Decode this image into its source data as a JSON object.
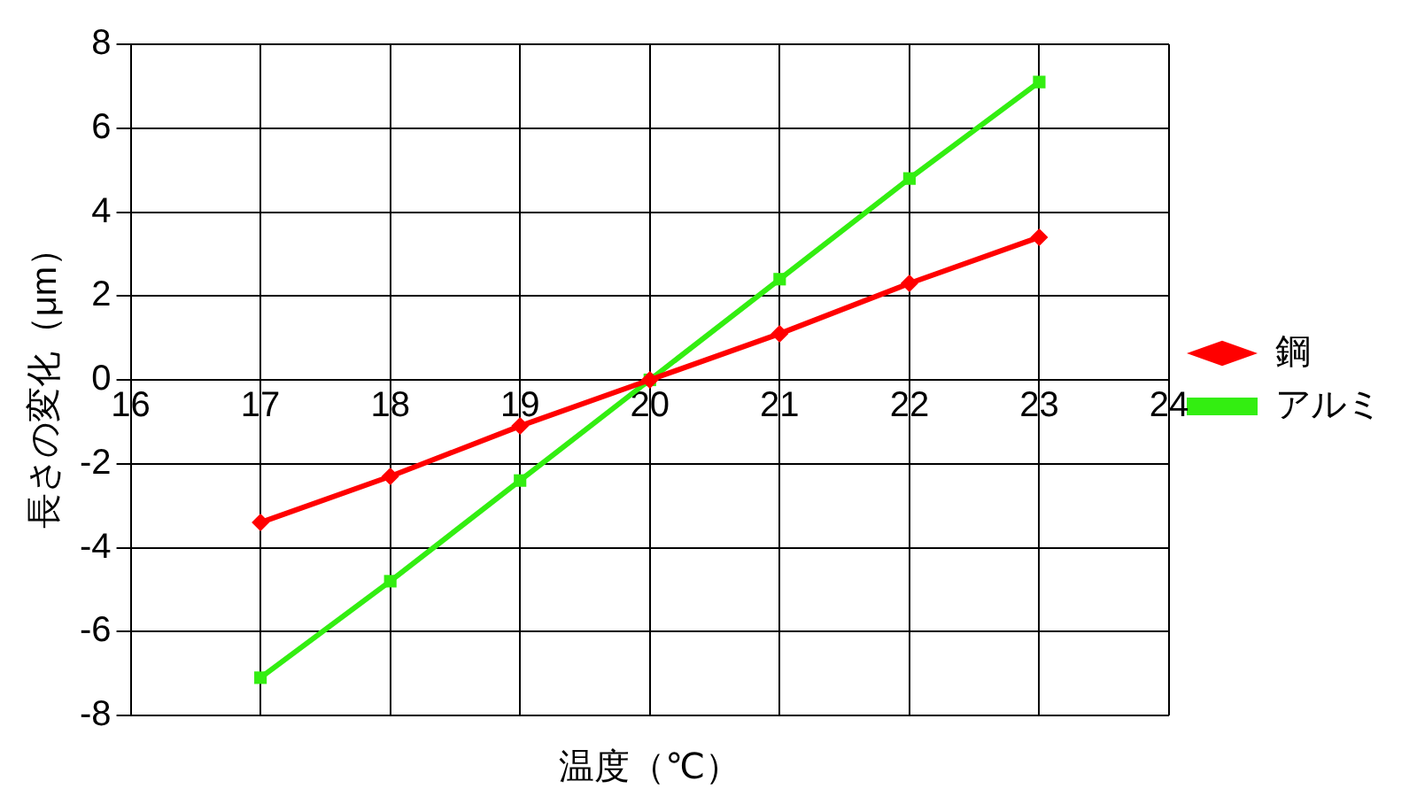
{
  "chart_data": {
    "type": "line",
    "xlabel": "温度（℃）",
    "ylabel": "長さの変化（μm）",
    "x": [
      17,
      18,
      19,
      20,
      21,
      22,
      23
    ],
    "series": [
      {
        "name": "鋼",
        "color": "#ff0000",
        "marker": "diamond",
        "values": [
          -3.4,
          -2.3,
          -1.1,
          0,
          1.1,
          2.3,
          3.4
        ]
      },
      {
        "name": "アルミ",
        "color": "#33ee11",
        "marker": "square",
        "values": [
          -7.1,
          -4.8,
          -2.4,
          0,
          2.4,
          4.8,
          7.1
        ]
      }
    ],
    "xlim": [
      16,
      24
    ],
    "xticks": [
      16,
      17,
      18,
      19,
      20,
      21,
      22,
      23,
      24
    ],
    "ylim": [
      -8,
      8
    ],
    "yticks": [
      -8,
      -6,
      -4,
      -2,
      0,
      2,
      4,
      6,
      8
    ],
    "grid": true,
    "legend": "right",
    "line_style": "solid"
  }
}
